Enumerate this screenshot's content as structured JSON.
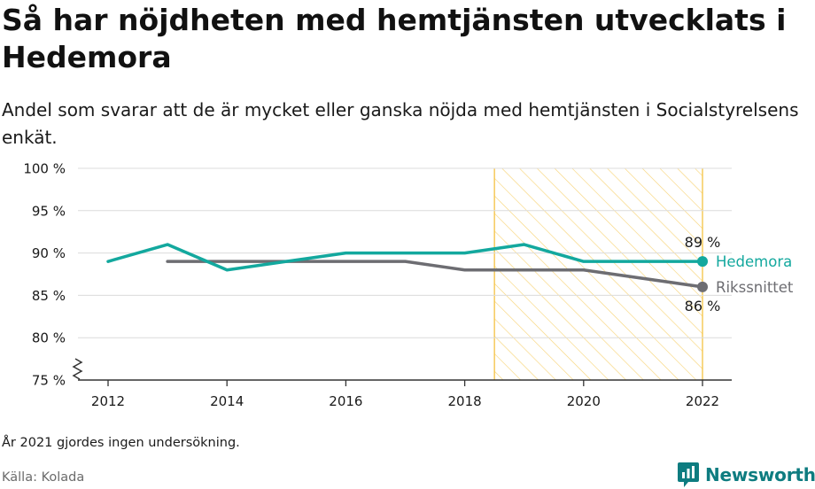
{
  "title": "Så har nöjdheten med hemtjänsten utvecklats i Hedemora",
  "subtitle": "Andel som svarar att de är mycket eller ganska nöjda med hemtjänsten i Socialstyrelsens enkät.",
  "note": "År 2021 gjordes ingen undersökning.",
  "source": "Källa: Kolada",
  "brand": {
    "name": "Newsworthy",
    "color": "#0e7c80",
    "icon": "newsworthy-logo-icon"
  },
  "chart_data": {
    "type": "line",
    "xlim": [
      2011.5,
      2022.5
    ],
    "ylim": [
      75,
      100
    ],
    "x_ticks": [
      2012,
      2014,
      2016,
      2018,
      2020,
      2022
    ],
    "x_tick_labels": [
      "2012",
      "2014",
      "2016",
      "2018",
      "2020",
      "2022"
    ],
    "y_ticks": [
      75,
      80,
      85,
      90,
      95,
      100
    ],
    "y_tick_labels": [
      "75 %",
      "80 %",
      "85 %",
      "90 %",
      "95 %",
      "100 %"
    ],
    "axis_break": true,
    "grid": true,
    "highlight_range": {
      "x": [
        2018.5,
        2022
      ],
      "pattern": "diagonal-hatch",
      "color": "#f5c242"
    },
    "series": [
      {
        "name": "Hedemora",
        "color": "#13a89e",
        "x": [
          2012,
          2013,
          2014,
          2015,
          2016,
          2017,
          2018,
          2019,
          2020,
          2022
        ],
        "values": [
          89,
          91,
          88,
          89,
          90,
          90,
          90,
          91,
          89,
          89
        ],
        "end_label": "89 %",
        "end_label_position": "above"
      },
      {
        "name": "Rikssnittet",
        "color": "#6d6d72",
        "x": [
          2013,
          2014,
          2015,
          2016,
          2017,
          2018,
          2019,
          2020,
          2022
        ],
        "values": [
          89,
          89,
          89,
          89,
          89,
          88,
          88,
          88,
          86
        ],
        "end_label": "86 %",
        "end_label_position": "below"
      }
    ]
  }
}
